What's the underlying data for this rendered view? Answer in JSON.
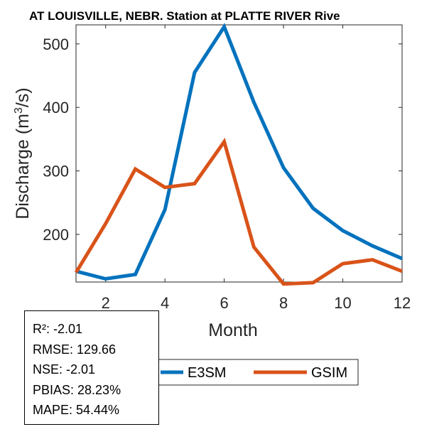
{
  "chart_data": {
    "type": "line",
    "title": "AT LOUISVILLE, NEBR.  Station at  PLATTE RIVER  Rive",
    "xlabel": "Month",
    "ylabel_main": "Discharge (m",
    "ylabel_sup": "3",
    "ylabel_end": "/s)",
    "xlim": [
      1,
      12
    ],
    "ylim": [
      125,
      530
    ],
    "xticks": [
      2,
      4,
      6,
      8,
      10,
      12
    ],
    "yticks": [
      200,
      300,
      400,
      500
    ],
    "x": [
      1,
      2,
      3,
      4,
      5,
      6,
      7,
      8,
      9,
      10,
      11,
      12
    ],
    "series": [
      {
        "name": "E3SM",
        "color": "#0072BD",
        "values": [
          142,
          130,
          137,
          239,
          455,
          527,
          408,
          305,
          241,
          206,
          182,
          162
        ]
      },
      {
        "name": "GSIM",
        "color": "#D95319",
        "values": [
          140,
          217,
          303,
          274,
          280,
          346,
          180,
          122,
          124,
          154,
          160,
          142
        ]
      }
    ]
  },
  "stats": {
    "r2": "R²: -2.01",
    "rmse": "RMSE: 129.66",
    "nse": "NSE: -2.01",
    "pbias": "PBIAS: 28.23%",
    "mape": "MAPE: 54.44%"
  }
}
